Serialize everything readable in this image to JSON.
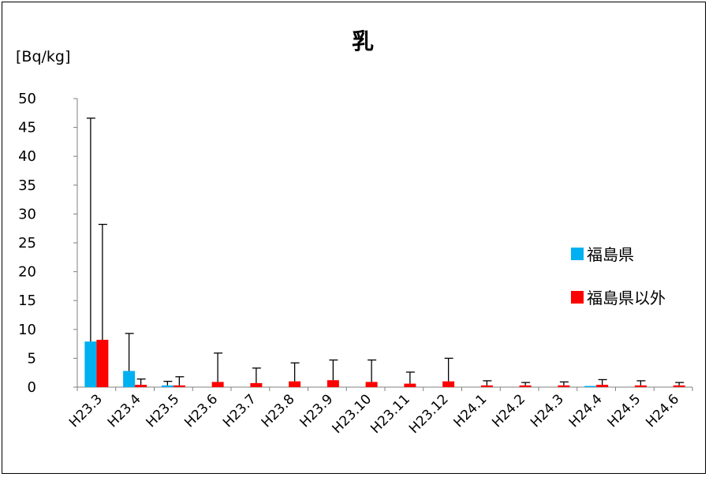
{
  "chart_data": {
    "type": "bar",
    "title": "乳",
    "unit_label": "[Bq/kg]",
    "ylim": [
      0,
      50
    ],
    "yticks": [
      0,
      5,
      10,
      15,
      20,
      25,
      30,
      35,
      40,
      45,
      50
    ],
    "ytick_labels": [
      "0",
      "5",
      "10",
      "15",
      "20",
      "25",
      "30",
      "35",
      "40",
      "45",
      "50"
    ],
    "categories": [
      "H23.3",
      "H23.4",
      "H23.5",
      "H23.6",
      "H23.7",
      "H23.8",
      "H23.9",
      "H23.10",
      "H23.11",
      "H23.12",
      "H24.1",
      "H24.2",
      "H24.3",
      "H24.4",
      "H24.5",
      "H24.6"
    ],
    "grid": false,
    "legend_position": "right",
    "series": [
      {
        "name": "福島県",
        "color": "#00b0f0",
        "values": [
          7.9,
          2.8,
          0.3,
          0,
          0,
          0,
          0,
          0,
          0,
          0,
          0,
          0,
          0,
          0.2,
          0,
          0
        ],
        "error_upper": [
          46.6,
          9.3,
          1.0,
          null,
          null,
          null,
          null,
          null,
          null,
          null,
          null,
          null,
          null,
          null,
          null,
          null
        ]
      },
      {
        "name": "福島県以外",
        "color": "#ff0000",
        "values": [
          8.2,
          0.4,
          0.3,
          0.9,
          0.7,
          1.0,
          1.2,
          0.9,
          0.6,
          1.0,
          0.3,
          0.3,
          0.3,
          0.4,
          0.3,
          0.3
        ],
        "error_upper": [
          28.2,
          1.4,
          1.8,
          5.9,
          3.3,
          4.2,
          4.7,
          4.7,
          2.6,
          5.0,
          1.1,
          0.8,
          0.9,
          1.3,
          1.1,
          0.8
        ]
      }
    ]
  }
}
